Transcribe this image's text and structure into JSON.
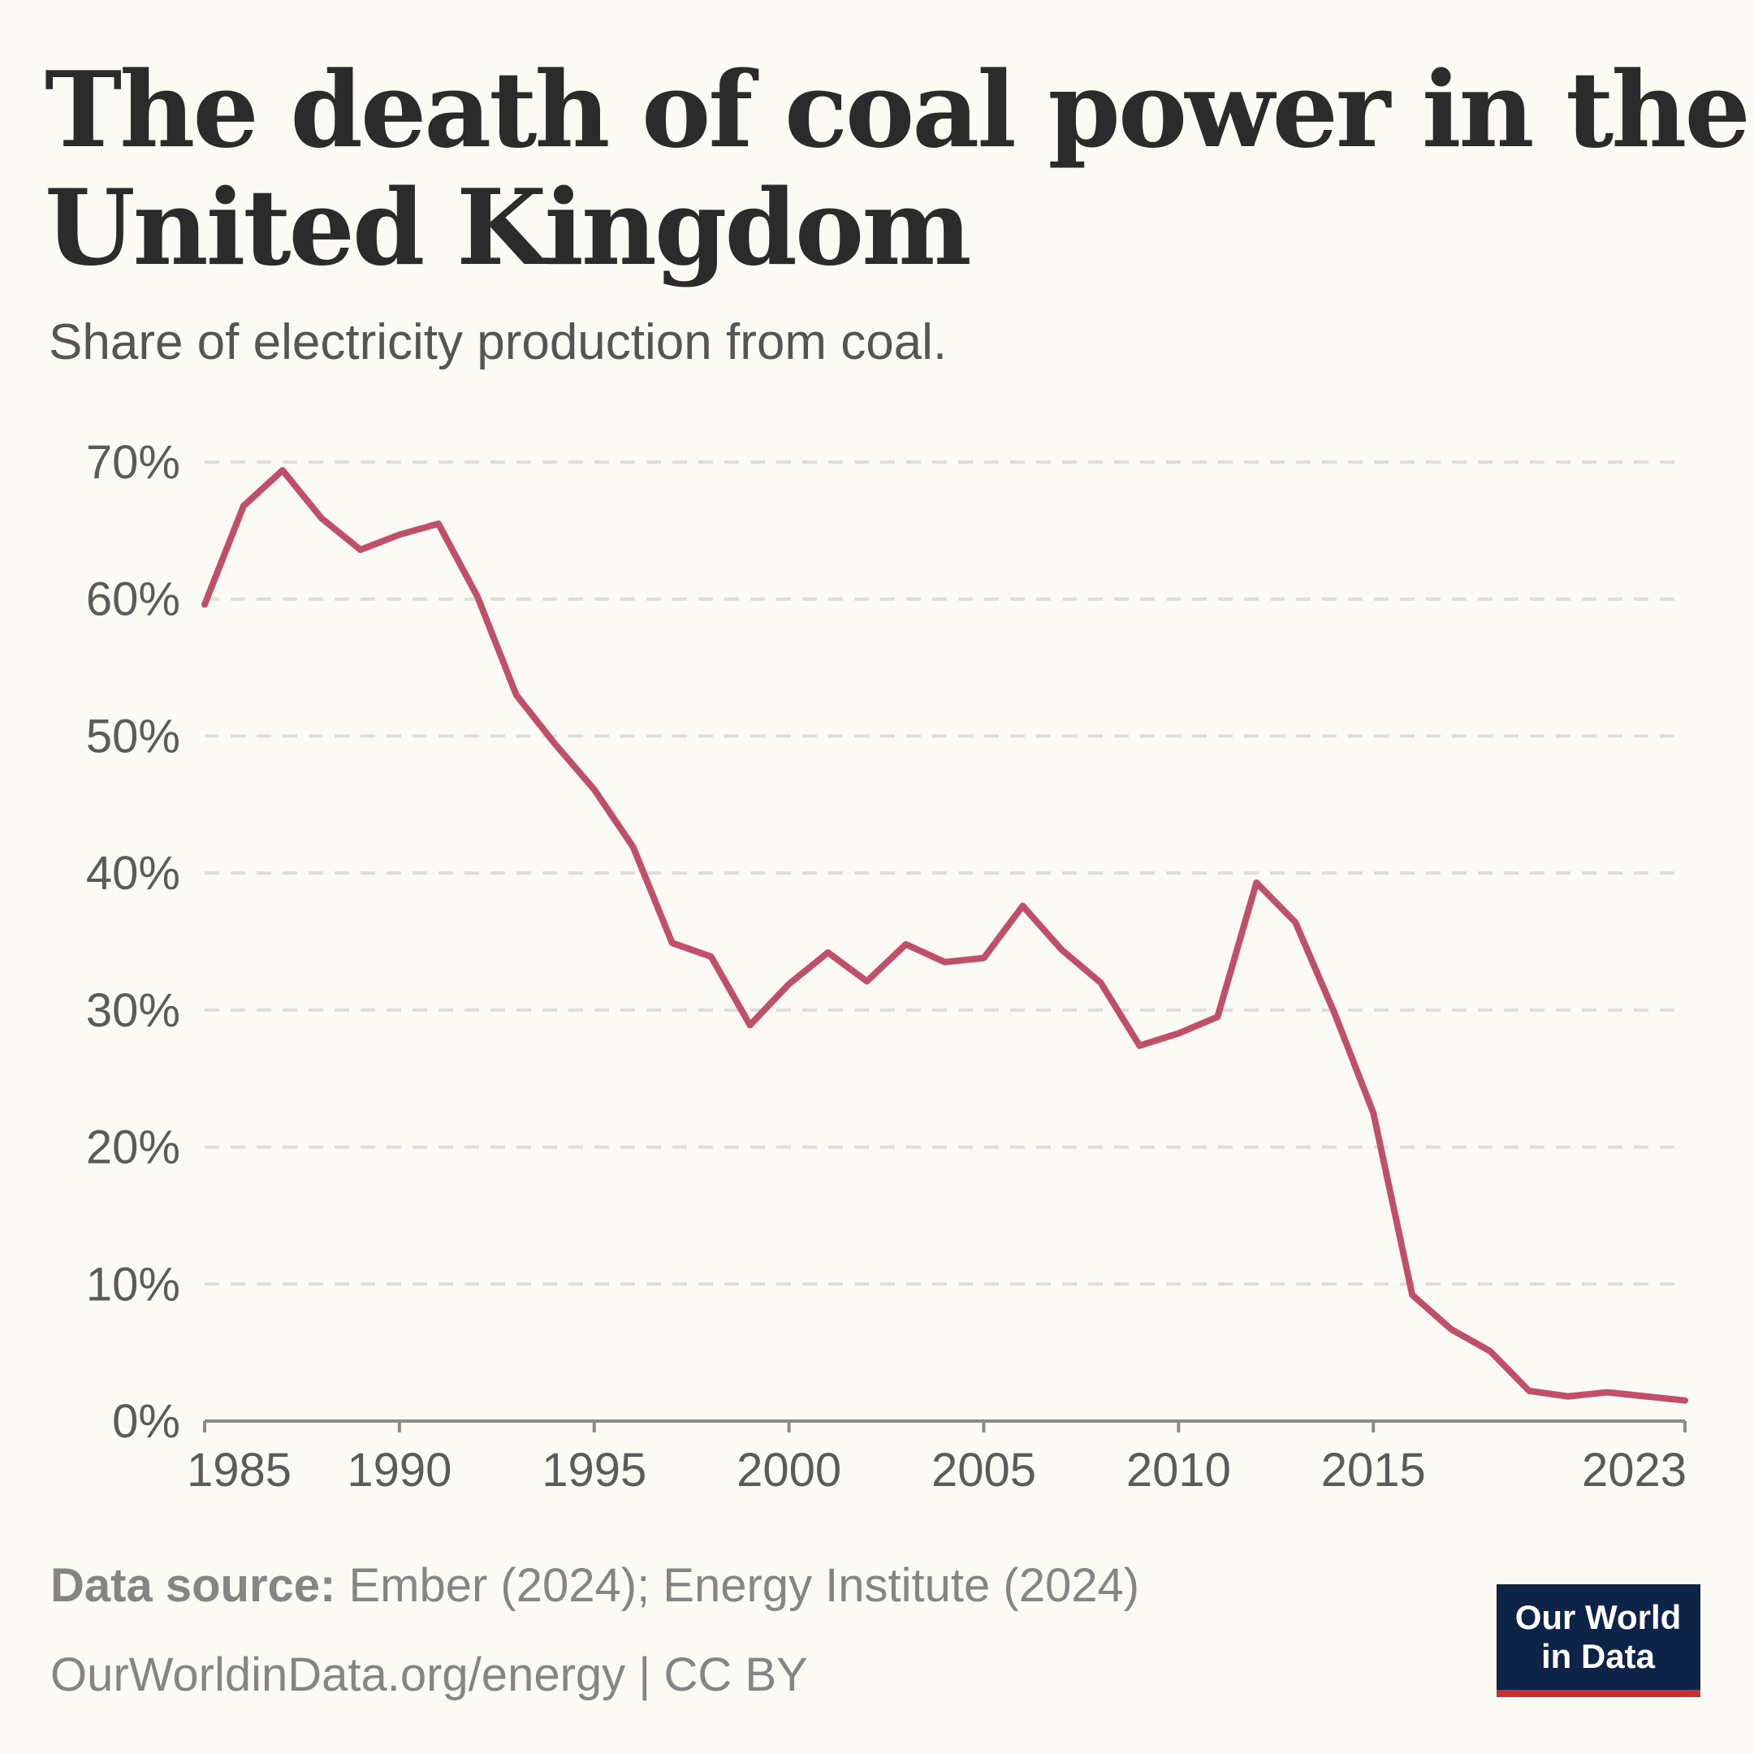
{
  "chart_data": {
    "type": "line",
    "title": [
      "The death of coal power in the",
      "United Kingdom"
    ],
    "subtitle": "Share of electricity production from coal.",
    "x": [
      1985,
      1986,
      1987,
      1988,
      1989,
      1990,
      1991,
      1992,
      1993,
      1994,
      1995,
      1996,
      1997,
      1998,
      1999,
      2000,
      2001,
      2002,
      2003,
      2004,
      2005,
      2006,
      2007,
      2008,
      2009,
      2010,
      2011,
      2012,
      2013,
      2014,
      2015,
      2016,
      2017,
      2018,
      2019,
      2020,
      2021,
      2022,
      2023
    ],
    "series": [
      {
        "name": "United Kingdom",
        "color": "#c0506a",
        "values": [
          59.6,
          66.8,
          69.4,
          65.9,
          63.6,
          64.7,
          65.5,
          60.2,
          53.0,
          49.4,
          46.1,
          41.9,
          34.9,
          33.9,
          28.9,
          31.9,
          34.2,
          32.1,
          34.8,
          33.5,
          33.8,
          37.6,
          34.4,
          32.0,
          27.4,
          28.3,
          29.5,
          39.3,
          36.4,
          29.8,
          22.5,
          9.2,
          6.7,
          5.1,
          2.2,
          1.8,
          2.1,
          1.8,
          1.5
        ]
      }
    ],
    "xlim": [
      1985,
      2023
    ],
    "xticks": [
      1985,
      1990,
      1995,
      2000,
      2005,
      2010,
      2015,
      2023
    ],
    "ylim": [
      0,
      70
    ],
    "yticks": [
      {
        "value": 0,
        "label": "0%"
      },
      {
        "value": 10,
        "label": "10%"
      },
      {
        "value": 20,
        "label": "20%"
      },
      {
        "value": 30,
        "label": "30%"
      },
      {
        "value": 40,
        "label": "40%"
      },
      {
        "value": 50,
        "label": "50%"
      },
      {
        "value": 60,
        "label": "60%"
      },
      {
        "value": 70,
        "label": "70%"
      }
    ],
    "grid": true,
    "source_label": "Data source:",
    "source": "Ember (2024); Energy Institute (2024)",
    "url": "OurWorldinData.org/energy | CC BY",
    "logo": [
      "Our World",
      "in Data"
    ]
  }
}
